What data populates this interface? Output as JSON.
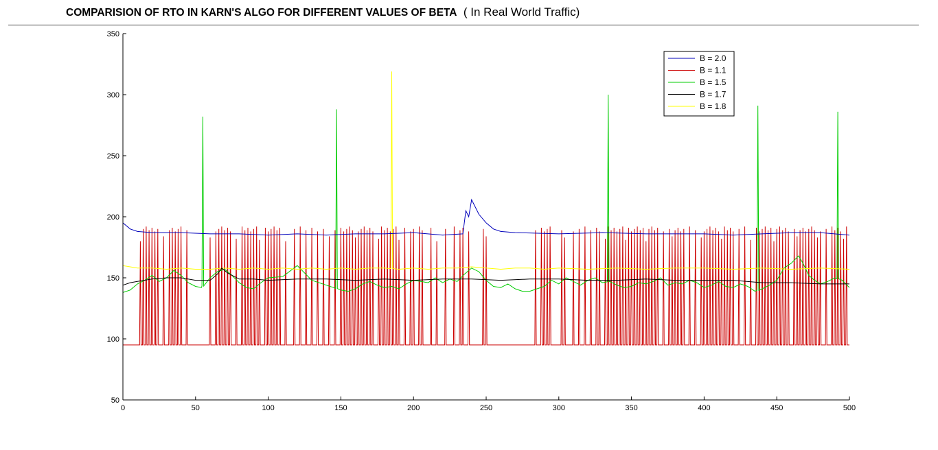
{
  "title": {
    "main": "COMPARISION OF RTO IN KARN'S ALGO FOR DIFFERENT VALUES OF BETA",
    "sub": "( In Real World Traffic)"
  },
  "chart_data": {
    "type": "line",
    "title": "COMPARISION OF RTO IN KARN'S ALGO FOR DIFFERENT VALUES OF BETA  ( In Real World Traffic)",
    "xlabel": "",
    "ylabel": "",
    "xlim": [
      0,
      500
    ],
    "ylim": [
      50,
      350
    ],
    "xticks": [
      0,
      50,
      100,
      150,
      200,
      250,
      300,
      350,
      400,
      450,
      500
    ],
    "yticks": [
      50,
      100,
      150,
      200,
      250,
      300,
      350
    ],
    "grid": false,
    "legend_position": "top-right",
    "series": [
      {
        "name": "B = 2.0",
        "color": "#0000bb",
        "x": [
          0,
          5,
          10,
          20,
          40,
          60,
          80,
          100,
          120,
          140,
          160,
          180,
          200,
          220,
          234,
          236,
          238,
          240,
          245,
          250,
          255,
          260,
          270,
          300,
          330,
          360,
          380,
          400,
          420,
          440,
          460,
          480,
          500
        ],
        "y": [
          195,
          190,
          188,
          187,
          187,
          186,
          186,
          185,
          186,
          185,
          186,
          186,
          187,
          185,
          186,
          205,
          200,
          214,
          202,
          195,
          190,
          188,
          187,
          186,
          187,
          186,
          186,
          186,
          185,
          186,
          187,
          187,
          185
        ]
      },
      {
        "name": "B = 1.1",
        "color": "#cc0000",
        "spike_base": 95,
        "spike_peak": 190,
        "spike_x": [
          12,
          14,
          16,
          18,
          20,
          22,
          24,
          28,
          32,
          34,
          36,
          38,
          40,
          44,
          60,
          64,
          66,
          68,
          70,
          72,
          74,
          78,
          82,
          84,
          86,
          88,
          90,
          92,
          94,
          98,
          100,
          102,
          104,
          106,
          108,
          112,
          118,
          122,
          126,
          130,
          134,
          138,
          142,
          146,
          150,
          152,
          154,
          156,
          158,
          160,
          162,
          164,
          166,
          168,
          170,
          172,
          176,
          178,
          180,
          182,
          184,
          186,
          188,
          190,
          194,
          198,
          200,
          204,
          206,
          212,
          216,
          222,
          228,
          232,
          234,
          238,
          248,
          250,
          284,
          288,
          290,
          292,
          294,
          302,
          304,
          310,
          314,
          318,
          322,
          326,
          328,
          332,
          334,
          336,
          338,
          340,
          342,
          344,
          346,
          348,
          350,
          352,
          354,
          356,
          358,
          360,
          362,
          364,
          366,
          368,
          372,
          376,
          378,
          380,
          382,
          384,
          386,
          390,
          394,
          398,
          400,
          402,
          404,
          406,
          408,
          410,
          412,
          414,
          416,
          418,
          420,
          424,
          428,
          432,
          436,
          438,
          440,
          442,
          444,
          446,
          448,
          450,
          452,
          454,
          456,
          458,
          462,
          464,
          466,
          468,
          470,
          472,
          474,
          476,
          478,
          480,
          484,
          488,
          490,
          492,
          494,
          496,
          498
        ]
      },
      {
        "name": "B = 1.5",
        "color": "#00cc00",
        "spikes": [
          [
            55,
            282
          ],
          [
            147,
            288
          ],
          [
            334,
            300
          ],
          [
            437,
            291
          ],
          [
            492,
            286
          ]
        ],
        "x": [
          0,
          5,
          10,
          15,
          20,
          25,
          30,
          35,
          40,
          45,
          50,
          54,
          60,
          65,
          70,
          75,
          80,
          85,
          90,
          95,
          100,
          110,
          120,
          130,
          140,
          145,
          150,
          155,
          160,
          165,
          170,
          175,
          180,
          185,
          190,
          195,
          200,
          205,
          210,
          215,
          220,
          225,
          230,
          235,
          240,
          245,
          250,
          255,
          260,
          265,
          270,
          275,
          280,
          285,
          290,
          295,
          300,
          305,
          310,
          315,
          320,
          325,
          330,
          335,
          340,
          345,
          350,
          355,
          360,
          365,
          370,
          375,
          380,
          385,
          390,
          395,
          400,
          405,
          410,
          415,
          420,
          425,
          430,
          435,
          440,
          445,
          450,
          455,
          460,
          465,
          468,
          472,
          476,
          480,
          485,
          490,
          495,
          500
        ],
        "y": [
          138,
          140,
          145,
          148,
          152,
          147,
          150,
          156,
          152,
          146,
          143,
          142,
          150,
          155,
          157,
          152,
          146,
          142,
          141,
          146,
          150,
          151,
          160,
          148,
          144,
          142,
          140,
          139,
          141,
          145,
          147,
          144,
          142,
          143,
          141,
          145,
          148,
          147,
          146,
          150,
          146,
          149,
          147,
          153,
          158,
          155,
          148,
          143,
          142,
          145,
          141,
          139,
          139,
          141,
          143,
          148,
          145,
          150,
          147,
          144,
          148,
          150,
          146,
          147,
          144,
          142,
          143,
          146,
          145,
          147,
          150,
          144,
          146,
          145,
          148,
          146,
          142,
          144,
          147,
          143,
          142,
          145,
          143,
          139,
          141,
          144,
          148,
          158,
          162,
          168,
          162,
          152,
          148,
          145,
          147,
          150,
          148,
          142
        ]
      },
      {
        "name": "B = 1.7",
        "color": "#000000",
        "x": [
          0,
          5,
          10,
          20,
          30,
          40,
          50,
          60,
          65,
          68,
          72,
          80,
          90,
          100,
          120,
          140,
          160,
          180,
          200,
          220,
          240,
          260,
          280,
          300,
          320,
          340,
          360,
          380,
          400,
          420,
          440,
          460,
          480,
          500
        ],
        "y": [
          144,
          146,
          147,
          149,
          150,
          150,
          148,
          148,
          153,
          158,
          154,
          149,
          149,
          148,
          149,
          149,
          148,
          149,
          148,
          149,
          149,
          148,
          149,
          149,
          148,
          148,
          149,
          148,
          148,
          148,
          146,
          146,
          145,
          145
        ]
      },
      {
        "name": "B = 1.8",
        "color": "#ffff00",
        "spikes": [
          [
            185,
            319
          ]
        ],
        "x": [
          0,
          5,
          10,
          20,
          30,
          40,
          50,
          60,
          70,
          80,
          90,
          100,
          110,
          120,
          130,
          140,
          150,
          160,
          170,
          180,
          190,
          200,
          210,
          220,
          230,
          240,
          250,
          260,
          270,
          280,
          290,
          300,
          320,
          340,
          360,
          380,
          400,
          420,
          440,
          460,
          480,
          500
        ],
        "y": [
          160,
          159,
          158,
          158,
          157,
          158,
          157,
          157,
          158,
          157,
          158,
          157,
          158,
          157,
          158,
          157,
          158,
          157,
          158,
          158,
          157,
          158,
          157,
          158,
          158,
          159,
          158,
          157,
          158,
          158,
          157,
          158,
          157,
          158,
          157,
          158,
          158,
          157,
          158,
          157,
          158,
          157
        ]
      }
    ]
  }
}
